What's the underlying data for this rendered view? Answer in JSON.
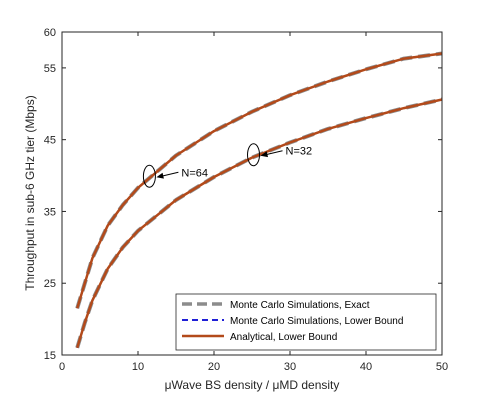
{
  "chart_data": {
    "type": "line",
    "xlabel": "μWave BS density / μMD density",
    "ylabel": "Throughput in sub-6 GHz tier (Mbps)",
    "xlim": [
      0,
      50
    ],
    "ylim": [
      15,
      60
    ],
    "xticks": [
      "0",
      "10",
      "20",
      "30",
      "40",
      "50"
    ],
    "yticks": [
      "15",
      "25",
      "35",
      "45",
      "55",
      "60"
    ],
    "grid": false,
    "legend_position": "bottom-right",
    "colors": {
      "exact": "#8c8c8c",
      "lower_bound": "#1f1fd6",
      "analytical": "#b34a1a"
    },
    "series": [
      {
        "name": "Monte Carlo Simulations, Exact",
        "style": "dashed-thick-gray",
        "curves": [
          {
            "group": "N=64",
            "x": [
              2,
              3,
              4,
              6,
              8,
              10,
              15,
              20,
              25,
              30,
              35,
              40,
              45,
              50
            ],
            "y": [
              21.5,
              25.0,
              28.5,
              33.0,
              35.9,
              38.3,
              42.8,
              46.2,
              48.9,
              51.2,
              53.1,
              54.8,
              56.3,
              57.0
            ]
          },
          {
            "group": "N=32",
            "x": [
              2,
              3,
              4,
              6,
              8,
              10,
              15,
              20,
              25,
              30,
              35,
              40,
              45,
              50
            ],
            "y": [
              16.0,
              19.5,
              22.6,
              27.0,
              30.0,
              32.3,
              36.6,
              39.8,
              42.5,
              44.6,
              46.5,
              48.0,
              49.4,
              50.6
            ]
          }
        ]
      },
      {
        "name": "Monte Carlo Simulations, Lower Bound",
        "style": "dashed-blue",
        "curves": [
          {
            "group": "N=64",
            "x": [
              2,
              3,
              4,
              6,
              8,
              10,
              15,
              20,
              25,
              30,
              35,
              40,
              45,
              50
            ],
            "y": [
              21.5,
              25.0,
              28.5,
              33.0,
              35.9,
              38.3,
              42.8,
              46.2,
              48.9,
              51.2,
              53.1,
              54.8,
              56.3,
              57.0
            ]
          },
          {
            "group": "N=32",
            "x": [
              2,
              3,
              4,
              6,
              8,
              10,
              15,
              20,
              25,
              30,
              35,
              40,
              45,
              50
            ],
            "y": [
              16.0,
              19.5,
              22.6,
              27.0,
              30.0,
              32.3,
              36.6,
              39.8,
              42.5,
              44.6,
              46.5,
              48.0,
              49.4,
              50.6
            ]
          }
        ]
      },
      {
        "name": "Analytical, Lower Bound",
        "style": "solid-brown",
        "curves": [
          {
            "group": "N=64",
            "x": [
              2,
              3,
              4,
              6,
              8,
              10,
              15,
              20,
              25,
              30,
              35,
              40,
              45,
              50
            ],
            "y": [
              21.5,
              25.0,
              28.5,
              33.0,
              35.9,
              38.3,
              42.8,
              46.2,
              48.9,
              51.2,
              53.1,
              54.8,
              56.3,
              57.0
            ]
          },
          {
            "group": "N=32",
            "x": [
              2,
              3,
              4,
              6,
              8,
              10,
              15,
              20,
              25,
              30,
              35,
              40,
              45,
              50
            ],
            "y": [
              16.0,
              19.5,
              22.6,
              27.0,
              30.0,
              32.3,
              36.6,
              39.8,
              42.5,
              44.6,
              46.5,
              48.0,
              49.4,
              50.6
            ]
          }
        ]
      }
    ],
    "annotations": [
      {
        "text": "N=64",
        "target_x": 11.5,
        "target_y": 39.9
      },
      {
        "text": "N=32",
        "target_x": 25.2,
        "target_y": 42.9
      }
    ]
  }
}
